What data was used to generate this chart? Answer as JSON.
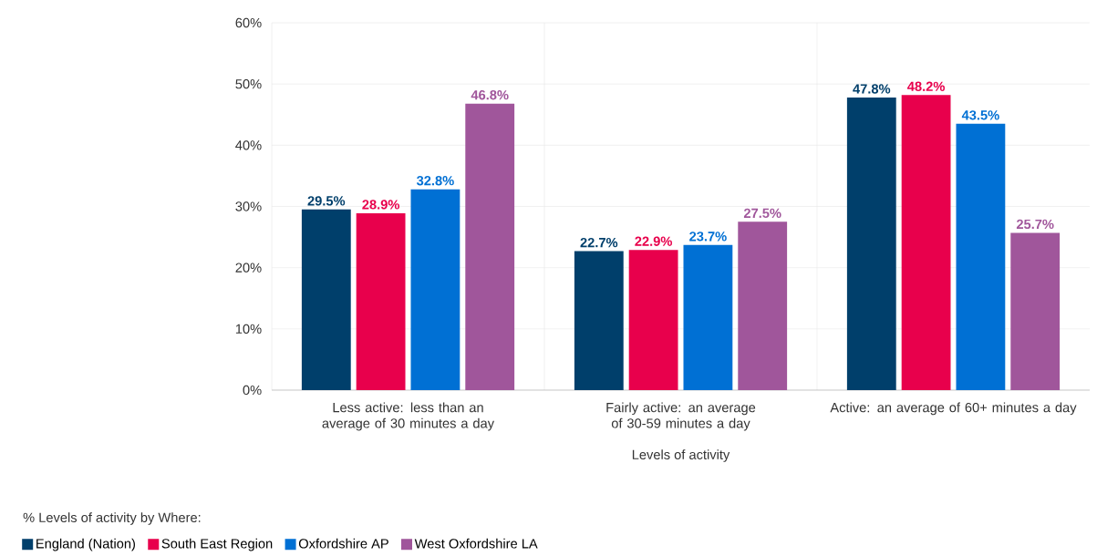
{
  "chart_data": {
    "type": "bar",
    "xlabel": "Levels of activity",
    "legend_title": "% Levels of activity by Where:",
    "categories": [
      "Less active: less than an average of 30 minutes a day",
      "Fairly active: an average of 30-59 minutes a day",
      "Active: an average of 60+ minutes a day"
    ],
    "series": [
      {
        "name": "England (Nation)",
        "color": "#003f6b",
        "values": [
          29.5,
          22.7,
          47.8
        ],
        "value_labels": [
          "29.5%",
          "22.7%",
          "47.8%"
        ]
      },
      {
        "name": "South East Region",
        "color": "#e8004c",
        "values": [
          28.9,
          22.9,
          48.2
        ],
        "value_labels": [
          "28.9%",
          "22.9%",
          "48.2%"
        ]
      },
      {
        "name": "Oxfordshire AP",
        "color": "#0070d4",
        "values": [
          32.8,
          23.7,
          43.5
        ],
        "value_labels": [
          "32.8%",
          "23.7%",
          "43.5%"
        ]
      },
      {
        "name": "West Oxfordshire LA",
        "color": "#a0569b",
        "values": [
          46.8,
          27.5,
          25.7
        ],
        "value_labels": [
          "46.8%",
          "27.5%",
          "25.7%"
        ]
      }
    ],
    "ylim": [
      0,
      60
    ],
    "yticks": [
      {
        "value": 0,
        "label": "0%"
      },
      {
        "value": 10,
        "label": "10%"
      },
      {
        "value": 20,
        "label": "20%"
      },
      {
        "value": 30,
        "label": "30%"
      },
      {
        "value": 40,
        "label": "40%"
      },
      {
        "value": 50,
        "label": "50%"
      },
      {
        "value": 60,
        "label": "60%"
      }
    ],
    "grid": true,
    "legend": "bottom"
  }
}
